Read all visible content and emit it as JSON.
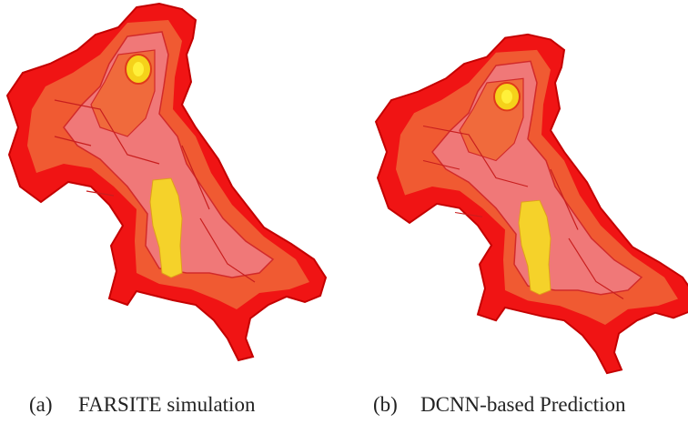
{
  "panels": [
    {
      "label": "(a)",
      "caption": "FARSITE simulation"
    },
    {
      "label": "(b)",
      "caption": "DCNN-based Prediction"
    }
  ]
}
